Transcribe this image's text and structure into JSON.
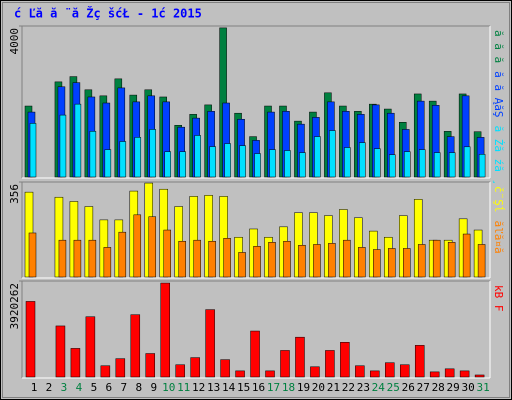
{
  "chart_data": [
    {
      "type": "bar",
      "title": "ć Ľă  ă ¨ă Žç šćŁ  - 1ć   2015",
      "title_color": "#0000ff",
      "categories": [
        "1",
        "2",
        "3",
        "4",
        "5",
        "6",
        "7",
        "8",
        "9",
        "10",
        "11",
        "12",
        "13",
        "14",
        "15",
        "16",
        "17",
        "18",
        "19",
        "20",
        "21",
        "22",
        "23",
        "24",
        "25",
        "26",
        "27",
        "28",
        "29",
        "30",
        "31"
      ],
      "category_colors": [
        "#000000",
        "#000000",
        "#008040",
        "#008040",
        "#000000",
        "#000000",
        "#000000",
        "#000000",
        "#000000",
        "#008040",
        "#008040",
        "#000000",
        "#000000",
        "#000000",
        "#000000",
        "#000000",
        "#008040",
        "#008040",
        "#000000",
        "#000000",
        "#000000",
        "#000000",
        "#000000",
        "#008040",
        "#008040",
        "#000000",
        "#000000",
        "#000000",
        "#000000",
        "#000000",
        "#008040"
      ],
      "ylim": [
        0,
        4000
      ],
      "yticks": [
        4000
      ],
      "series": [
        {
          "name": "ă ă ă",
          "color": "#008040",
          "values": [
            1880,
            0,
            2520,
            2660,
            2310,
            2150,
            2600,
            2170,
            2310,
            2120,
            1370,
            1660,
            1910,
            3950,
            1690,
            1070,
            1880,
            1880,
            1480,
            1720,
            2230,
            1880,
            1740,
            1930,
            1800,
            1450,
            2200,
            2010,
            1210,
            2200,
            1200
          ]
        },
        {
          "name": "ă ă ĄăŞ",
          "color": "#0040ff",
          "values": [
            1720,
            0,
            2390,
            2500,
            2120,
            1960,
            2360,
            1990,
            2150,
            1990,
            1320,
            1560,
            1740,
            1960,
            1530,
            970,
            1720,
            1740,
            1400,
            1580,
            1990,
            1740,
            1660,
            1910,
            1690,
            1260,
            2010,
            1900,
            1070,
            2150,
            1050
          ]
        },
        {
          "name": "ă Źă źă ¸",
          "color": "#00e0ff",
          "values": [
            1420,
            0,
            1640,
            1930,
            1210,
            725,
            940,
            1050,
            1260,
            670,
            670,
            1100,
            805,
            885,
            830,
            620,
            725,
            700,
            645,
            1070,
            1230,
            780,
            910,
            750,
            590,
            670,
            725,
            645,
            645,
            800,
            600
          ]
        }
      ]
    },
    {
      "type": "bar",
      "ylim": [
        0,
        356
      ],
      "yticks": [
        356
      ],
      "series": [
        {
          "name": "č¨Şĺ ",
          "color": "#ffff00",
          "values": [
            318,
            0,
            299,
            283,
            264,
            214,
            214,
            322,
            352,
            329,
            264,
            302,
            306,
            302,
            149,
            180,
            149,
            188,
            241,
            241,
            230,
            253,
            222,
            172,
            149,
            230,
            291,
            138,
            138,
            218,
            176
          ]
        },
        {
          "name": "ăľă¤ă",
          "color": "#ff8000",
          "values": [
            165,
            0,
            138,
            138,
            138,
            111,
            168,
            233,
            226,
            176,
            134,
            138,
            134,
            145,
            92,
            115,
            130,
            134,
            119,
            122,
            126,
            138,
            111,
            103,
            107,
            107,
            122,
            138,
            130,
            161,
            122
          ]
        }
      ]
    },
    {
      "type": "bar",
      "ylim": [
        0,
        3920262
      ],
      "yticks": [
        3920262
      ],
      "series": [
        {
          "name": "kB F",
          "color": "#ff0000",
          "values": [
            3086000,
            0,
            2085000,
            1168000,
            2461000,
            459000,
            750000,
            2544000,
            959000,
            3837000,
            500000,
            792000,
            2752000,
            709000,
            250000,
            1877000,
            250000,
            1084000,
            1626000,
            417000,
            1084000,
            1418000,
            459000,
            250000,
            584000,
            500000,
            1293000,
            209000,
            334000,
            250000,
            83000
          ]
        }
      ]
    }
  ]
}
